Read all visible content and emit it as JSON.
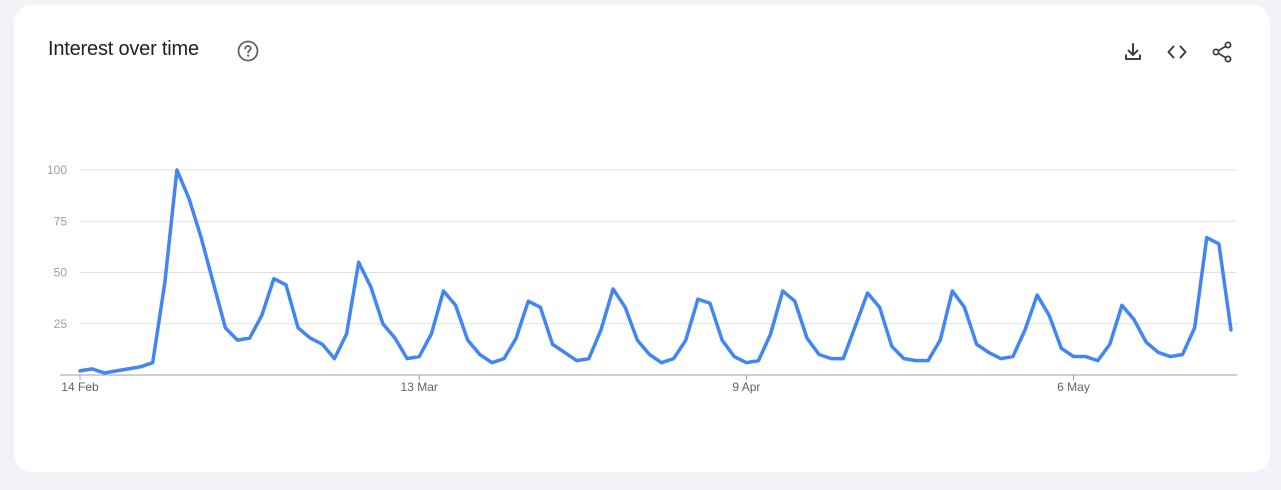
{
  "header": {
    "title": "Interest over time",
    "help_icon": "help-circle-icon"
  },
  "toolbar": {
    "icons": [
      "download-icon",
      "embed-code-icon",
      "share-icon"
    ]
  },
  "colors": {
    "line": "#4285f4",
    "grid": "#e0e0e0",
    "axis": "#9aa0a6",
    "tick_label": "#9aa0a6",
    "x_label": "#5f6368",
    "title": "#202124"
  },
  "chart_data": {
    "type": "line",
    "title": "Interest over time",
    "xlabel": "",
    "ylabel": "",
    "ylim": [
      0,
      100
    ],
    "yticks": [
      25,
      50,
      75,
      100
    ],
    "xtick_labels": [
      {
        "label": "14 Feb",
        "index": 0
      },
      {
        "label": "13 Mar",
        "index": 28
      },
      {
        "label": "9 Apr",
        "index": 55
      },
      {
        "label": "6 May",
        "index": 82
      }
    ],
    "grid": true,
    "series": [
      {
        "values": [
          2,
          3,
          1,
          2,
          3,
          4,
          6,
          45,
          100,
          86,
          67,
          45,
          23,
          17,
          18,
          29,
          47,
          44,
          23,
          18,
          15,
          8,
          20,
          55,
          43,
          25,
          18,
          8,
          9,
          20,
          41,
          34,
          17,
          10,
          6,
          8,
          18,
          36,
          33,
          15,
          11,
          7,
          8,
          22,
          42,
          33,
          17,
          10,
          6,
          8,
          17,
          37,
          35,
          17,
          9,
          6,
          7,
          20,
          41,
          36,
          18,
          10,
          8,
          8,
          24,
          40,
          33,
          14,
          8,
          7,
          7,
          17,
          41,
          33,
          15,
          11,
          8,
          9,
          22,
          39,
          29,
          13,
          9,
          9,
          7,
          15,
          34,
          27,
          16,
          11,
          9,
          10,
          23,
          67,
          64,
          22
        ]
      }
    ]
  }
}
